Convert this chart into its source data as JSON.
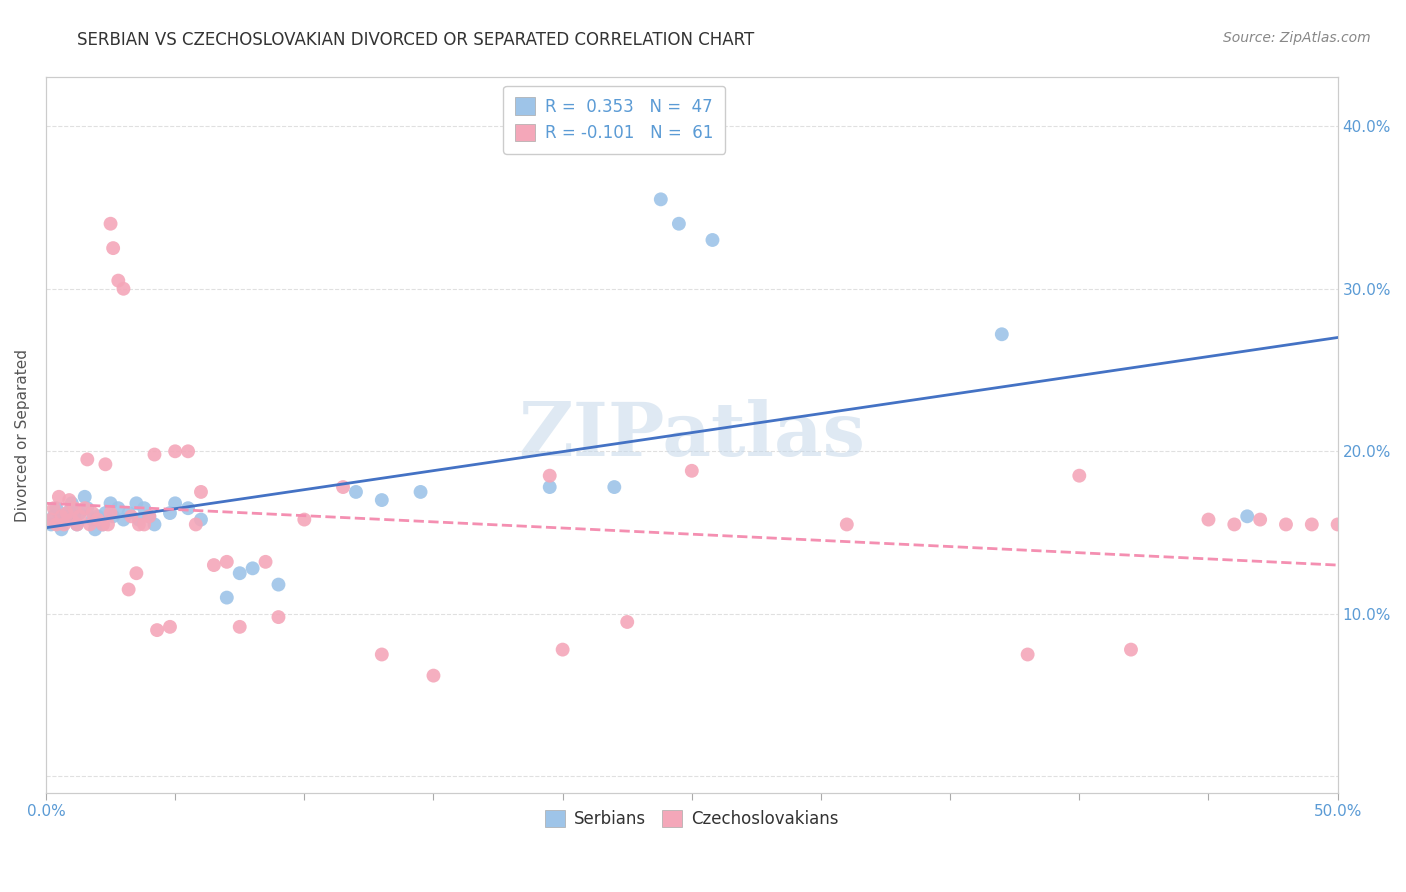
{
  "title": "SERBIAN VS CZECHOSLOVAKIAN DIVORCED OR SEPARATED CORRELATION CHART",
  "source": "Source: ZipAtlas.com",
  "ylabel": "Divorced or Separated",
  "xlabel": "",
  "xlim": [
    0.0,
    0.5
  ],
  "ylim": [
    -0.01,
    0.43
  ],
  "xticks": [
    0.0,
    0.05,
    0.1,
    0.15,
    0.2,
    0.25,
    0.3,
    0.35,
    0.4,
    0.45,
    0.5
  ],
  "yticks": [
    0.0,
    0.1,
    0.2,
    0.3,
    0.4
  ],
  "ytick_labels": [
    "",
    "10.0%",
    "20.0%",
    "30.0%",
    "40.0%"
  ],
  "xtick_labels": [
    "0.0%",
    "",
    "",
    "",
    "",
    "",
    "",
    "",
    "",
    "",
    "50.0%"
  ],
  "watermark": "ZIPatlas",
  "legend_serbian_r": "R =  0.353",
  "legend_serbian_n": "N =  47",
  "legend_czech_r": "R = -0.101",
  "legend_czech_n": "N =  61",
  "serbian_color": "#9ec4e8",
  "czech_color": "#f4a7b9",
  "serbian_line_color": "#4472c4",
  "czech_line_color": "#f48fb1",
  "title_color": "#333333",
  "axis_color": "#5b9bd5",
  "grid_color": "#e0e0e0",
  "serbian_scatter": [
    [
      0.002,
      0.155
    ],
    [
      0.003,
      0.16
    ],
    [
      0.004,
      0.165
    ],
    [
      0.005,
      0.158
    ],
    [
      0.006,
      0.152
    ],
    [
      0.007,
      0.16
    ],
    [
      0.008,
      0.158
    ],
    [
      0.009,
      0.163
    ],
    [
      0.01,
      0.168
    ],
    [
      0.011,
      0.16
    ],
    [
      0.012,
      0.155
    ],
    [
      0.013,
      0.162
    ],
    [
      0.015,
      0.172
    ],
    [
      0.016,
      0.165
    ],
    [
      0.018,
      0.158
    ],
    [
      0.019,
      0.152
    ],
    [
      0.02,
      0.16
    ],
    [
      0.022,
      0.155
    ],
    [
      0.023,
      0.162
    ],
    [
      0.025,
      0.168
    ],
    [
      0.026,
      0.16
    ],
    [
      0.028,
      0.165
    ],
    [
      0.03,
      0.158
    ],
    [
      0.032,
      0.162
    ],
    [
      0.035,
      0.168
    ],
    [
      0.036,
      0.158
    ],
    [
      0.038,
      0.165
    ],
    [
      0.04,
      0.16
    ],
    [
      0.042,
      0.155
    ],
    [
      0.048,
      0.162
    ],
    [
      0.05,
      0.168
    ],
    [
      0.055,
      0.165
    ],
    [
      0.06,
      0.158
    ],
    [
      0.07,
      0.11
    ],
    [
      0.075,
      0.125
    ],
    [
      0.08,
      0.128
    ],
    [
      0.09,
      0.118
    ],
    [
      0.12,
      0.175
    ],
    [
      0.13,
      0.17
    ],
    [
      0.145,
      0.175
    ],
    [
      0.195,
      0.178
    ],
    [
      0.22,
      0.178
    ],
    [
      0.238,
      0.355
    ],
    [
      0.245,
      0.34
    ],
    [
      0.258,
      0.33
    ],
    [
      0.37,
      0.272
    ],
    [
      0.465,
      0.16
    ]
  ],
  "czech_scatter": [
    [
      0.002,
      0.158
    ],
    [
      0.003,
      0.165
    ],
    [
      0.004,
      0.155
    ],
    [
      0.005,
      0.172
    ],
    [
      0.006,
      0.16
    ],
    [
      0.007,
      0.155
    ],
    [
      0.008,
      0.162
    ],
    [
      0.009,
      0.17
    ],
    [
      0.01,
      0.158
    ],
    [
      0.011,
      0.165
    ],
    [
      0.012,
      0.155
    ],
    [
      0.013,
      0.16
    ],
    [
      0.015,
      0.165
    ],
    [
      0.016,
      0.195
    ],
    [
      0.017,
      0.155
    ],
    [
      0.018,
      0.162
    ],
    [
      0.02,
      0.158
    ],
    [
      0.022,
      0.155
    ],
    [
      0.023,
      0.192
    ],
    [
      0.024,
      0.155
    ],
    [
      0.025,
      0.162
    ],
    [
      0.025,
      0.34
    ],
    [
      0.026,
      0.325
    ],
    [
      0.028,
      0.305
    ],
    [
      0.03,
      0.3
    ],
    [
      0.032,
      0.115
    ],
    [
      0.033,
      0.16
    ],
    [
      0.035,
      0.125
    ],
    [
      0.036,
      0.155
    ],
    [
      0.038,
      0.155
    ],
    [
      0.04,
      0.16
    ],
    [
      0.042,
      0.198
    ],
    [
      0.043,
      0.09
    ],
    [
      0.048,
      0.092
    ],
    [
      0.05,
      0.2
    ],
    [
      0.055,
      0.2
    ],
    [
      0.058,
      0.155
    ],
    [
      0.06,
      0.175
    ],
    [
      0.065,
      0.13
    ],
    [
      0.07,
      0.132
    ],
    [
      0.075,
      0.092
    ],
    [
      0.085,
      0.132
    ],
    [
      0.09,
      0.098
    ],
    [
      0.1,
      0.158
    ],
    [
      0.115,
      0.178
    ],
    [
      0.13,
      0.075
    ],
    [
      0.15,
      0.062
    ],
    [
      0.195,
      0.185
    ],
    [
      0.2,
      0.078
    ],
    [
      0.225,
      0.095
    ],
    [
      0.25,
      0.188
    ],
    [
      0.31,
      0.155
    ],
    [
      0.38,
      0.075
    ],
    [
      0.4,
      0.185
    ],
    [
      0.42,
      0.078
    ],
    [
      0.45,
      0.158
    ],
    [
      0.46,
      0.155
    ],
    [
      0.47,
      0.158
    ],
    [
      0.48,
      0.155
    ],
    [
      0.49,
      0.155
    ],
    [
      0.5,
      0.155
    ]
  ],
  "serbian_line_x": [
    0.0,
    0.5
  ],
  "serbian_line_y": [
    0.153,
    0.27
  ],
  "czech_line_x": [
    0.0,
    0.5
  ],
  "czech_line_y": [
    0.168,
    0.13
  ]
}
